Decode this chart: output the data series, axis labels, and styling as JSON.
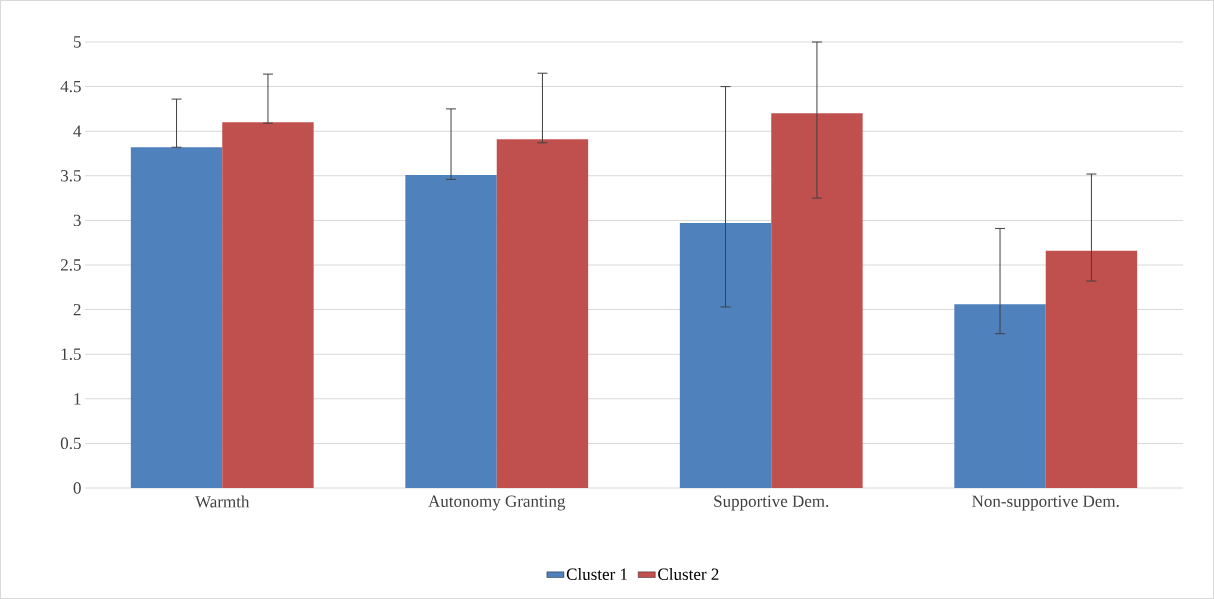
{
  "chart_data": {
    "type": "bar",
    "categories": [
      "Warmth",
      "Autonomy Granting",
      "Supportive Dem.",
      "Non-supportive Dem."
    ],
    "series": [
      {
        "name": "Cluster 1",
        "color": "#4f81bd",
        "values": [
          3.82,
          3.51,
          2.97,
          2.06
        ],
        "errors": [
          [
            3.82,
            4.36
          ],
          [
            3.46,
            4.25
          ],
          [
            2.03,
            4.5
          ],
          [
            1.73,
            2.91
          ]
        ]
      },
      {
        "name": "Cluster 2",
        "color": "#c0504d",
        "values": [
          4.1,
          3.91,
          4.2,
          2.66
        ],
        "errors": [
          [
            4.09,
            4.64
          ],
          [
            3.87,
            4.65
          ],
          [
            3.25,
            5.0
          ],
          [
            2.32,
            3.52
          ]
        ]
      }
    ],
    "ylim": [
      0,
      5
    ],
    "yticks": [
      0,
      0.5,
      1,
      1.5,
      2,
      2.5,
      3,
      3.5,
      4,
      4.5,
      5
    ],
    "grid": "y",
    "legend": "bottom"
  }
}
